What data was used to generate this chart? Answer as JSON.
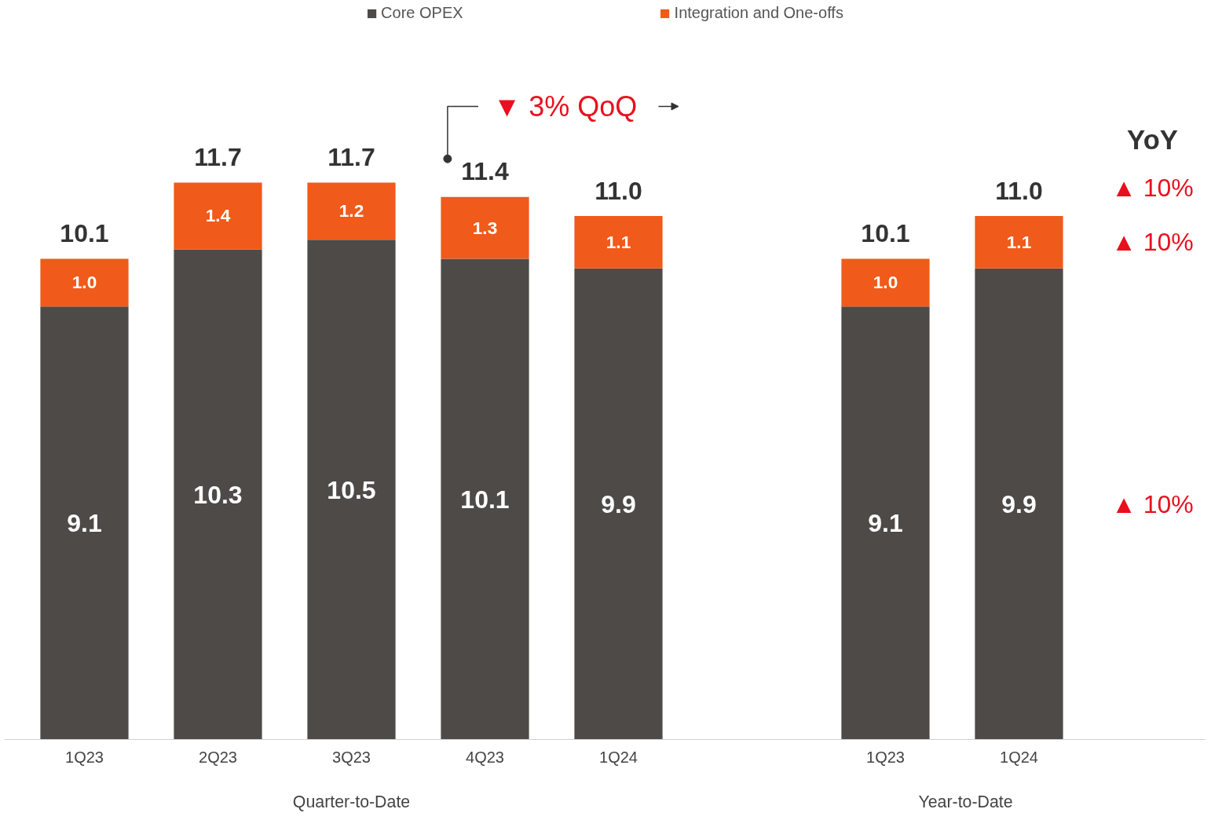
{
  "chart_data": {
    "type": "bar",
    "stacked": true,
    "categories": [
      "1Q23",
      "2Q23",
      "3Q23",
      "4Q23",
      "1Q24",
      null,
      "1Q23",
      "1Q24"
    ],
    "series": [
      {
        "name": "Core OPEX",
        "color": "#4d4a47",
        "values": [
          9.1,
          10.3,
          10.5,
          10.1,
          9.9,
          null,
          9.1,
          9.9
        ],
        "value_labels": [
          "9.1",
          "10.3",
          "10.5",
          "10.1",
          "9.9",
          null,
          "9.1",
          "9.9"
        ]
      },
      {
        "name": "Integration and One-offs",
        "color": "#f05a1a",
        "values": [
          1.0,
          1.4,
          1.2,
          1.3,
          1.1,
          null,
          1.0,
          1.1
        ],
        "value_labels": [
          "1.0",
          "1.4",
          "1.2",
          "1.3",
          "1.1",
          null,
          "1.0",
          "1.1"
        ]
      }
    ],
    "totals": [
      "10.1",
      "11.7",
      "11.7",
      "11.4",
      "11.0",
      null,
      "10.1",
      "11.0"
    ],
    "legend": "top",
    "grid": false,
    "tick_labels": "x",
    "annotations": [
      "▼ 3% QoQ",
      "YoY",
      "▲ 10%",
      "▲ 10%",
      "▲ 10%",
      "Quarter-to-Date",
      "Year-to-Date"
    ]
  }
}
